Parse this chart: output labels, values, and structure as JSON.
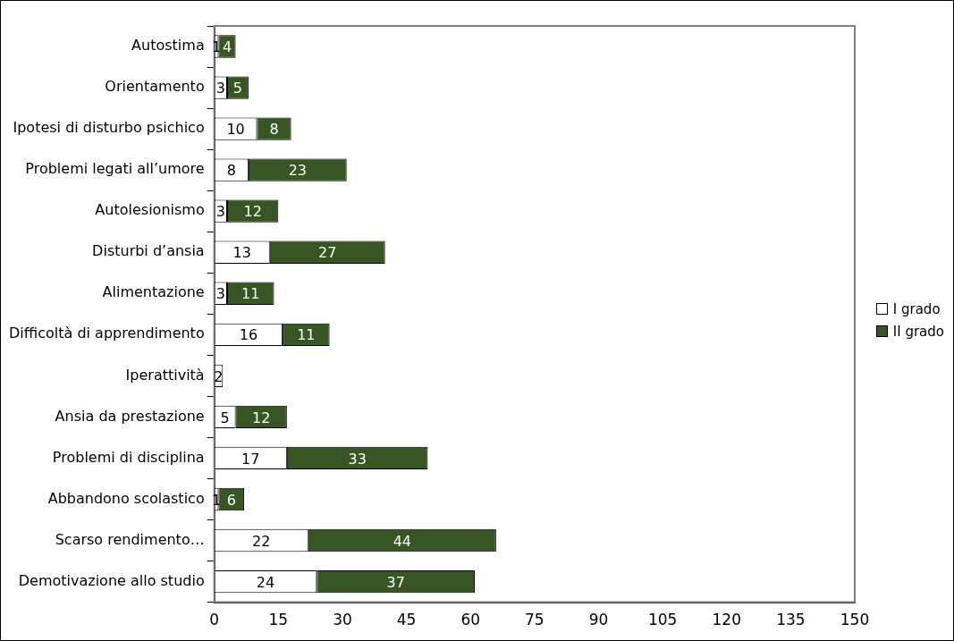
{
  "chart_data": {
    "type": "bar",
    "orientation": "horizontal",
    "stacked": true,
    "categories": [
      "Autostima",
      "Orientamento",
      "Ipotesi di disturbo psichico",
      "Problemi legati all’umore",
      "Autolesionismo",
      "Disturbi d’ansia",
      "Alimentazione",
      "Difficoltà di apprendimento",
      "Iperattività",
      "Ansia da prestazione",
      "Problemi di disciplina",
      "Abbandono scolastico",
      "Scarso rendimento…",
      "Demotivazione allo studio"
    ],
    "series": [
      {
        "name": "I grado",
        "color": "#ffffff",
        "values": [
          1,
          3,
          10,
          8,
          3,
          13,
          3,
          16,
          2,
          5,
          17,
          1,
          22,
          24
        ]
      },
      {
        "name": "II grado",
        "color": "#375623",
        "values": [
          4,
          5,
          8,
          23,
          12,
          27,
          11,
          11,
          null,
          12,
          33,
          6,
          44,
          37
        ]
      }
    ],
    "xlim": [
      0,
      150
    ],
    "xticks": [
      0,
      15,
      30,
      45,
      60,
      75,
      90,
      105,
      120,
      135,
      150
    ],
    "grid": false,
    "legend": "right",
    "data_labels": true
  }
}
